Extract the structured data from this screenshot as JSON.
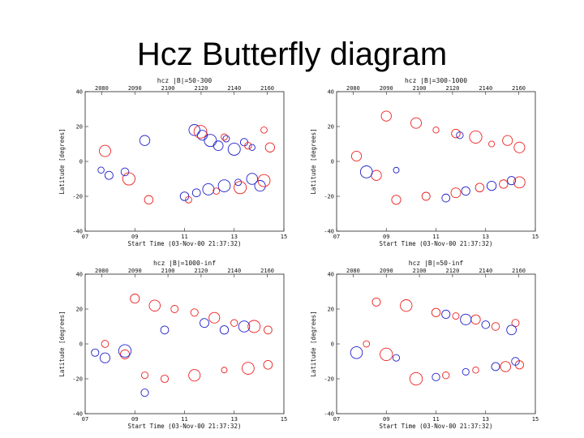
{
  "slide": {
    "title": "Hcz Butterfly diagram"
  },
  "colors": {
    "red": "#ee2222",
    "blue": "#2222cc"
  },
  "chart_data": [
    {
      "type": "scatter",
      "title": "hcz |B|=50-300",
      "xlabel": "Start Time (03-Nov-00 21:37:32)",
      "ylabel": "Latitude [degrees]",
      "top_ticks": [
        "2080",
        "2090",
        "2100",
        "2120",
        "2140",
        "2160"
      ],
      "bottom_ticks": [
        "07",
        "09",
        "11",
        "13",
        "15"
      ],
      "y_ticks": [
        "40",
        "20",
        "0",
        "-20",
        "-40"
      ],
      "ylim": [
        -40,
        40
      ],
      "series": [
        {
          "color": "blue",
          "points": [
            [
              0.55,
              18
            ],
            [
              0.59,
              15
            ],
            [
              0.63,
              12
            ],
            [
              0.67,
              9
            ],
            [
              0.71,
              13
            ],
            [
              0.75,
              7
            ],
            [
              0.8,
              11
            ],
            [
              0.84,
              8
            ],
            [
              0.5,
              -20
            ],
            [
              0.56,
              -18
            ],
            [
              0.62,
              -16
            ],
            [
              0.7,
              -14
            ],
            [
              0.77,
              -12
            ],
            [
              0.84,
              -10
            ],
            [
              0.88,
              -14
            ],
            [
              0.08,
              -5
            ],
            [
              0.12,
              -8
            ],
            [
              0.2,
              -6
            ],
            [
              0.3,
              12
            ]
          ]
        },
        {
          "color": "red",
          "points": [
            [
              0.58,
              17
            ],
            [
              0.7,
              14
            ],
            [
              0.82,
              9
            ],
            [
              0.9,
              18
            ],
            [
              0.93,
              8
            ],
            [
              0.52,
              -22
            ],
            [
              0.66,
              -17
            ],
            [
              0.78,
              -15
            ],
            [
              0.9,
              -11
            ],
            [
              0.32,
              -22
            ],
            [
              0.1,
              6
            ],
            [
              0.22,
              -10
            ]
          ]
        }
      ]
    },
    {
      "type": "scatter",
      "title": "hcz |B|=300-1000",
      "xlabel": "Start Time (03-Nov-00 21:37:32)",
      "ylabel": "Latitude [degrees]",
      "top_ticks": [
        "2080",
        "2090",
        "2100",
        "2120",
        "2140",
        "2160"
      ],
      "bottom_ticks": [
        "07",
        "09",
        "11",
        "13",
        "15"
      ],
      "y_ticks": [
        "40",
        "20",
        "0",
        "-20",
        "-40"
      ],
      "ylim": [
        -40,
        40
      ],
      "series": [
        {
          "color": "red",
          "points": [
            [
              0.25,
              26
            ],
            [
              0.4,
              22
            ],
            [
              0.5,
              18
            ],
            [
              0.6,
              16
            ],
            [
              0.7,
              14
            ],
            [
              0.78,
              10
            ],
            [
              0.86,
              12
            ],
            [
              0.92,
              8
            ],
            [
              0.45,
              -20
            ],
            [
              0.6,
              -18
            ],
            [
              0.72,
              -15
            ],
            [
              0.84,
              -13
            ],
            [
              0.92,
              -12
            ],
            [
              0.3,
              -22
            ],
            [
              0.1,
              3
            ],
            [
              0.2,
              -8
            ]
          ]
        },
        {
          "color": "blue",
          "points": [
            [
              0.55,
              -21
            ],
            [
              0.65,
              -17
            ],
            [
              0.78,
              -14
            ],
            [
              0.88,
              -11
            ],
            [
              0.62,
              15
            ],
            [
              0.15,
              -6
            ],
            [
              0.3,
              -5
            ]
          ]
        }
      ]
    },
    {
      "type": "scatter",
      "title": "hcz |B|=1000-inf",
      "xlabel": "Start Time (03-Nov-00 21:37:32)",
      "ylabel": "Latitude [degrees]",
      "top_ticks": [
        "2080",
        "2090",
        "2100",
        "2120",
        "2140",
        "2160"
      ],
      "bottom_ticks": [
        "07",
        "09",
        "11",
        "13",
        "15"
      ],
      "y_ticks": [
        "40",
        "20",
        "0",
        "-20",
        "-40"
      ],
      "ylim": [
        -40,
        40
      ],
      "series": [
        {
          "color": "red",
          "points": [
            [
              0.25,
              26
            ],
            [
              0.35,
              22
            ],
            [
              0.45,
              20
            ],
            [
              0.55,
              18
            ],
            [
              0.65,
              15
            ],
            [
              0.75,
              12
            ],
            [
              0.85,
              10
            ],
            [
              0.92,
              8
            ],
            [
              0.4,
              -20
            ],
            [
              0.55,
              -18
            ],
            [
              0.7,
              -15
            ],
            [
              0.82,
              -14
            ],
            [
              0.92,
              -12
            ],
            [
              0.1,
              0
            ],
            [
              0.2,
              -6
            ],
            [
              0.3,
              -18
            ]
          ]
        },
        {
          "color": "blue",
          "points": [
            [
              0.4,
              8
            ],
            [
              0.6,
              12
            ],
            [
              0.7,
              8
            ],
            [
              0.8,
              10
            ],
            [
              0.05,
              -5
            ],
            [
              0.1,
              -8
            ],
            [
              0.2,
              -4
            ],
            [
              0.3,
              -28
            ]
          ]
        }
      ]
    },
    {
      "type": "scatter",
      "title": "hcz |B|=50-inf",
      "xlabel": "Start Time (03-Nov-00 21:37:32)",
      "ylabel": "Latitude [degrees]",
      "top_ticks": [
        "2080",
        "2090",
        "2100",
        "2120",
        "2140",
        "2160"
      ],
      "bottom_ticks": [
        "07",
        "09",
        "11",
        "13",
        "15"
      ],
      "y_ticks": [
        "40",
        "20",
        "0",
        "-20",
        "-40"
      ],
      "ylim": [
        -40,
        40
      ],
      "series": [
        {
          "color": "red",
          "points": [
            [
              0.2,
              24
            ],
            [
              0.35,
              22
            ],
            [
              0.5,
              18
            ],
            [
              0.6,
              16
            ],
            [
              0.7,
              14
            ],
            [
              0.8,
              10
            ],
            [
              0.9,
              12
            ],
            [
              0.4,
              -20
            ],
            [
              0.55,
              -18
            ],
            [
              0.7,
              -15
            ],
            [
              0.85,
              -13
            ],
            [
              0.92,
              -12
            ],
            [
              0.15,
              0
            ],
            [
              0.25,
              -6
            ]
          ]
        },
        {
          "color": "blue",
          "points": [
            [
              0.55,
              17
            ],
            [
              0.65,
              14
            ],
            [
              0.75,
              11
            ],
            [
              0.88,
              8
            ],
            [
              0.5,
              -19
            ],
            [
              0.65,
              -16
            ],
            [
              0.8,
              -13
            ],
            [
              0.9,
              -10
            ],
            [
              0.1,
              -5
            ],
            [
              0.3,
              -8
            ]
          ]
        }
      ]
    }
  ]
}
